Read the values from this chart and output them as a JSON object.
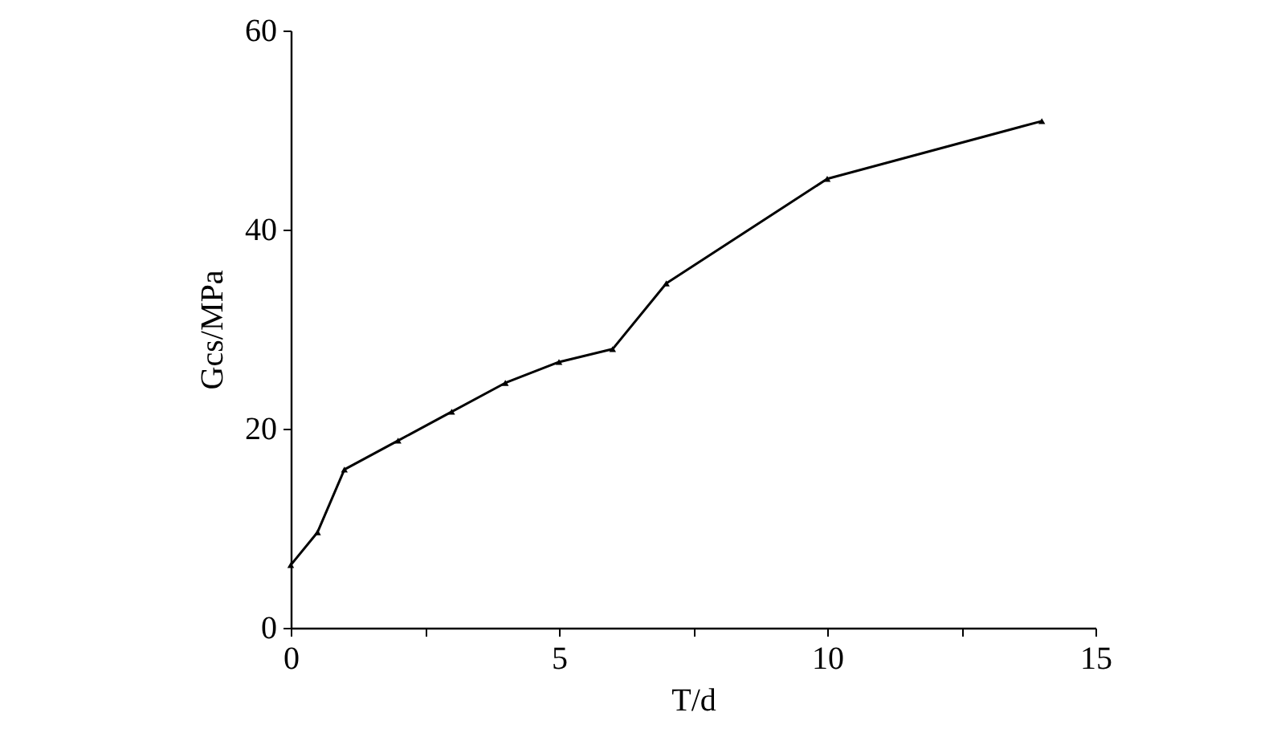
{
  "chart_data": {
    "type": "line",
    "xlabel": "T/d",
    "ylabel": "Gcs/MPa",
    "x": [
      0,
      0.5,
      1,
      2,
      3,
      4,
      5,
      6,
      7,
      10,
      14
    ],
    "series": [
      {
        "color": "#000000",
        "values": [
          6.3,
          9.6,
          15.9,
          18.8,
          21.7,
          24.6,
          26.7,
          28.0,
          34.6,
          45.1,
          50.9
        ]
      }
    ],
    "xlim": [
      0,
      15
    ],
    "ylim": [
      0,
      60
    ],
    "xticks": [
      0,
      {
        "value": 2.5,
        "label": null
      },
      5,
      {
        "value": 7.5,
        "label": null
      },
      10,
      {
        "value": 12.5,
        "label": null
      },
      15
    ],
    "yticks": [
      0,
      20,
      40,
      60
    ],
    "marker": "triangle",
    "line_style": "solid",
    "grid": false
  }
}
